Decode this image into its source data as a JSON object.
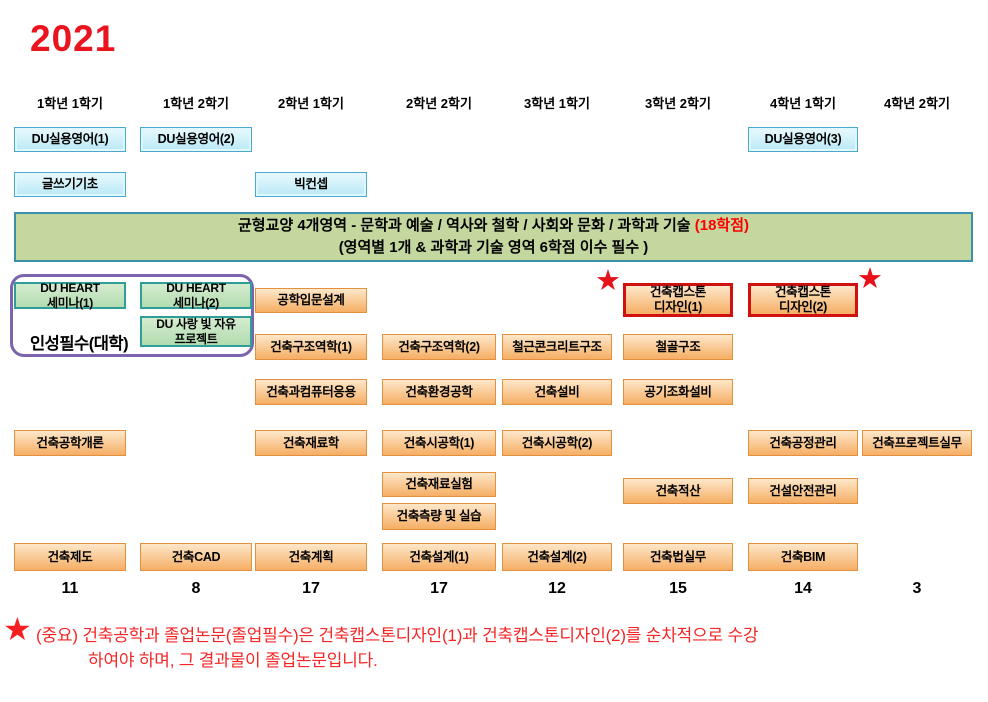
{
  "title": "2021",
  "column_headers": [
    "1학년 1학기",
    "1학년 2학기",
    "2학년 1학기",
    "2학년 2학기",
    "3학년 1학기",
    "3학년 2학기",
    "4학년 1학기",
    "4학년 2학기"
  ],
  "banner": {
    "line1_black": "균형교양  4개영역   - 문학과 예술 / 역사와 철학 /  사회와 문화 / 과학과 기술  ",
    "line1_red": "(18학점)",
    "line2": "(영역별 1개 & 과학과 기술 영역  6학점 이수 필수 )"
  },
  "personality_group": {
    "label": "인성필수(대학)"
  },
  "icons": {
    "star": "★"
  },
  "courses": [
    {
      "name": "du-practical-english-1",
      "label": "DU실용영어(1)",
      "col": 1,
      "row": "eng1",
      "type": "blue"
    },
    {
      "name": "du-practical-english-2",
      "label": "DU실용영어(2)",
      "col": 2,
      "row": "eng1",
      "type": "blue"
    },
    {
      "name": "du-practical-english-3",
      "label": "DU실용영어(3)",
      "col": 7,
      "row": "eng1",
      "type": "blue"
    },
    {
      "name": "writing-basics",
      "label": "글쓰기기초",
      "col": 1,
      "row": "eng2",
      "type": "blue"
    },
    {
      "name": "big-concept",
      "label": "빅컨셉",
      "col": 3,
      "row": "eng2",
      "type": "blue"
    },
    {
      "name": "du-heart-seminar-1",
      "label": "DU HEART\n세미나(1)",
      "col": 1,
      "row": "heart",
      "type": "green"
    },
    {
      "name": "du-heart-seminar-2",
      "label": "DU HEART\n세미나(2)",
      "col": 2,
      "row": "heart",
      "type": "green"
    },
    {
      "name": "du-love-light-freedom-project",
      "label": "DU 사랑 빛 자유\n프로젝트",
      "col": 2,
      "row": "project",
      "type": "green"
    },
    {
      "name": "intro-engineering-design",
      "label": "공학입문설계",
      "col": 3,
      "row": "intro",
      "type": "orange"
    },
    {
      "name": "capstone-design-1",
      "label": "건축캡스톤\n디자인(1)",
      "col": 6,
      "row": "cap",
      "type": "capstone"
    },
    {
      "name": "capstone-design-2",
      "label": "건축캡스톤\n디자인(2)",
      "col": 7,
      "row": "cap",
      "type": "capstone"
    },
    {
      "name": "structural-mechanics-1",
      "label": "건축구조역학(1)",
      "col": 3,
      "row": "struct",
      "type": "orange"
    },
    {
      "name": "structural-mechanics-2",
      "label": "건축구조역학(2)",
      "col": 4,
      "row": "struct",
      "type": "orange"
    },
    {
      "name": "reinforced-concrete-structures",
      "label": "철근콘크리트구조",
      "col": 5,
      "row": "struct",
      "type": "orange"
    },
    {
      "name": "steel-structures",
      "label": "철골구조",
      "col": 6,
      "row": "struct",
      "type": "orange"
    },
    {
      "name": "architecture-computer-applications",
      "label": "건축과컴퓨터응용",
      "col": 3,
      "row": "env",
      "type": "orange"
    },
    {
      "name": "building-environment-engineering",
      "label": "건축환경공학",
      "col": 4,
      "row": "env",
      "type": "orange"
    },
    {
      "name": "building-services",
      "label": "건축설비",
      "col": 5,
      "row": "env",
      "type": "orange"
    },
    {
      "name": "hvac-systems",
      "label": "공기조화설비",
      "col": 6,
      "row": "env",
      "type": "orange"
    },
    {
      "name": "intro-architectural-engineering",
      "label": "건축공학개론",
      "col": 1,
      "row": "mat",
      "type": "orange"
    },
    {
      "name": "building-materials",
      "label": "건축재료학",
      "col": 3,
      "row": "mat",
      "type": "orange"
    },
    {
      "name": "building-construction-1",
      "label": "건축시공학(1)",
      "col": 4,
      "row": "mat",
      "type": "orange"
    },
    {
      "name": "building-construction-2",
      "label": "건축시공학(2)",
      "col": 5,
      "row": "mat",
      "type": "orange"
    },
    {
      "name": "construction-process-management",
      "label": "건축공정관리",
      "col": 7,
      "row": "mat",
      "type": "orange"
    },
    {
      "name": "architecture-project-practice",
      "label": "건축프로젝트실무",
      "col": 8,
      "row": "mat",
      "type": "orange"
    },
    {
      "name": "building-materials-lab",
      "label": "건축재료실험",
      "col": 4,
      "row": "exp",
      "type": "orange"
    },
    {
      "name": "construction-estimation",
      "label": "건축적산",
      "col": 6,
      "row": "est",
      "type": "orange"
    },
    {
      "name": "construction-safety-management",
      "label": "건설안전관리",
      "col": 7,
      "row": "est",
      "type": "orange"
    },
    {
      "name": "building-surveying-practice",
      "label": "건축측량 및 실습",
      "col": 4,
      "row": "survey",
      "type": "orange"
    },
    {
      "name": "architectural-drafting",
      "label": "건축제도",
      "col": 1,
      "row": "design",
      "type": "orange"
    },
    {
      "name": "architectural-cad",
      "label": "건축CAD",
      "col": 2,
      "row": "design",
      "type": "orange"
    },
    {
      "name": "architectural-planning",
      "label": "건축계획",
      "col": 3,
      "row": "design",
      "type": "orange"
    },
    {
      "name": "architectural-design-1",
      "label": "건축설계(1)",
      "col": 4,
      "row": "design",
      "type": "orange"
    },
    {
      "name": "architectural-design-2",
      "label": "건축설계(2)",
      "col": 5,
      "row": "design",
      "type": "orange"
    },
    {
      "name": "architecture-law-practice",
      "label": "건축법실무",
      "col": 6,
      "row": "design",
      "type": "orange"
    },
    {
      "name": "architectural-bim",
      "label": "건축BIM",
      "col": 7,
      "row": "design",
      "type": "orange"
    }
  ],
  "semester_credits": [
    "11",
    "8",
    "17",
    "17",
    "12",
    "15",
    "14",
    "3"
  ],
  "note": {
    "line1": "(중요) 건축공학과 졸업논문(졸업필수)은 건축캡스톤디자인(1)과 건축캡스톤디자인(2)를 순차적으로 수강",
    "line2": "하여야 하며, 그 결과물이 졸업논문입니다."
  }
}
